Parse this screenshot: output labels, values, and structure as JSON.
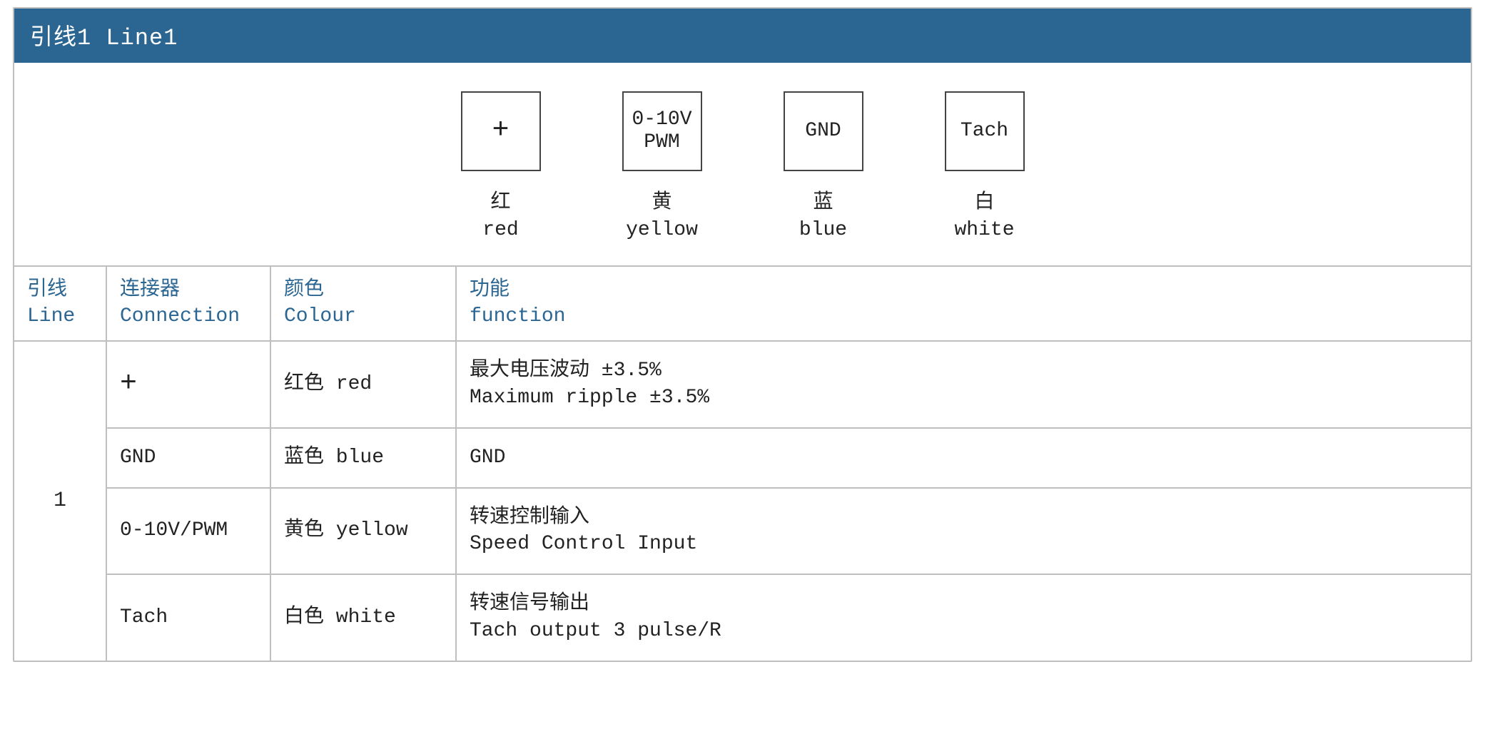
{
  "colors": {
    "header_bg": "#2b6692",
    "header_text": "#ffffff",
    "border": "#bfbfbf",
    "th_text": "#2b6692",
    "body_text": "#222222",
    "page_bg": "#ffffff",
    "pin_box_border": "#444444"
  },
  "fontsize": {
    "header": 32,
    "body": 28,
    "pin": 28
  },
  "header": "引线1 Line1",
  "diagram": {
    "pins": [
      {
        "symbol_lines": [
          "+"
        ],
        "symbol_is_plus": true,
        "caption_cn": "红",
        "caption_en": "red"
      },
      {
        "symbol_lines": [
          "0-10V",
          "PWM"
        ],
        "caption_cn": "黄",
        "caption_en": "yellow"
      },
      {
        "symbol_lines": [
          "GND"
        ],
        "caption_cn": "蓝",
        "caption_en": "blue"
      },
      {
        "symbol_lines": [
          "Tach"
        ],
        "caption_cn": "白",
        "caption_en": "white"
      }
    ]
  },
  "table": {
    "headers": {
      "line_cn": "引线",
      "line_en": "Line",
      "conn_cn": "连接器",
      "conn_en": "Connection",
      "color_cn": "颜色",
      "color_en": "Colour",
      "func_cn": "功能",
      "func_en": "function"
    },
    "group_line_value": "1",
    "rows": [
      {
        "conn": "+",
        "color": "红色 red",
        "func_cn": "最大电压波动 ±3.5%",
        "func_en": "Maximum ripple ±3.5%"
      },
      {
        "conn": "GND",
        "color": "蓝色 blue",
        "func_cn": "",
        "func_en": "GND"
      },
      {
        "conn": "0-10V/PWM",
        "color": "黄色 yellow",
        "func_cn": "转速控制输入",
        "func_en": "Speed Control Input"
      },
      {
        "conn": "Tach",
        "color": "白色 white",
        "func_cn": "转速信号输出",
        "func_en": "Tach output 3 pulse/R"
      }
    ]
  }
}
